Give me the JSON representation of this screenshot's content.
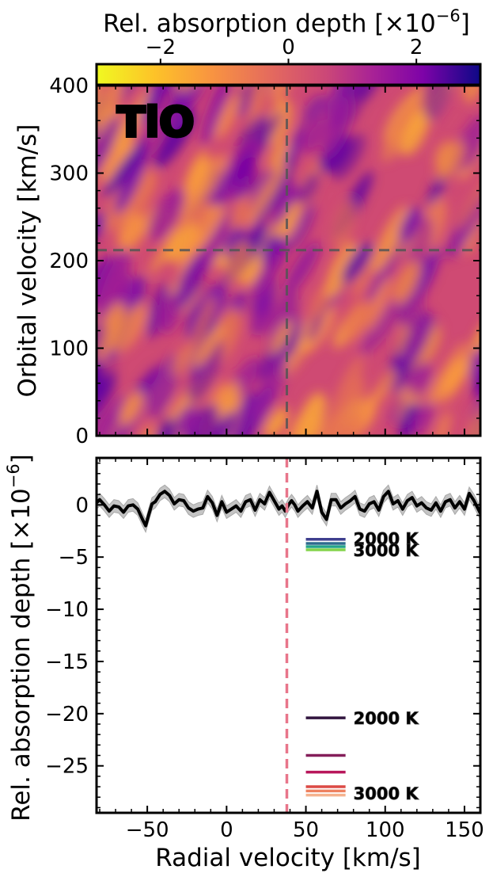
{
  "chart_data": [
    {
      "type": "heatmap",
      "panel_label": "TiO",
      "xlim": [
        -82,
        160
      ],
      "ylim": [
        0,
        400
      ],
      "x_ticks": [
        "−50",
        "0",
        "50",
        "100",
        "150"
      ],
      "x_tick_values": [
        -50,
        0,
        50,
        100,
        150
      ],
      "y_ticks": [
        "0",
        "100",
        "200",
        "300",
        "400"
      ],
      "y_tick_values": [
        0,
        100,
        200,
        300,
        400
      ],
      "ylabel": "Orbital velocity [km/s]",
      "colormap": "plasma_r",
      "colorbar": {
        "label": "Rel. absorption depth [×10",
        "label_exp": "−6",
        "label_end": "]",
        "range": [
          -3,
          3
        ],
        "ticks": [
          "−2",
          "0",
          "2"
        ],
        "tick_values": [
          -2,
          0,
          2
        ],
        "placement": "top"
      },
      "reference_lines": {
        "radial_velocity": 38,
        "orbital_velocity": 212,
        "style": "dashed",
        "color": "#555555"
      },
      "field_description_values": "noise map with diagonal streaks, values roughly between −3 and 3 ×10^−6"
    },
    {
      "type": "line",
      "xlim": [
        -82,
        160
      ],
      "ylim": [
        -29.5,
        4.5
      ],
      "x_ticks": [
        "−50",
        "0",
        "50",
        "100",
        "150"
      ],
      "x_tick_values": [
        -50,
        0,
        50,
        100,
        150
      ],
      "y_ticks": [
        "0",
        "−5",
        "−10",
        "−15",
        "−20",
        "−25"
      ],
      "y_tick_values": [
        0,
        -5,
        -10,
        -15,
        -20,
        -25
      ],
      "xlabel": "Radial velocity [km/s]",
      "ylabel": "Rel. absorption depth [×10",
      "ylabel_exp": "−6",
      "ylabel_end": "]",
      "reference_line": {
        "x": 38,
        "color": "#e8768b",
        "style": "dashed"
      },
      "series": [
        {
          "color": "#000000",
          "band_color": "#c4c4c4",
          "band_halfwidth": 0.6,
          "x": [
            -82,
            -80,
            -77,
            -74,
            -71,
            -68,
            -65,
            -62,
            -59,
            -56,
            -53,
            -51,
            -49,
            -47,
            -45,
            -42,
            -39,
            -36,
            -33,
            -30,
            -27,
            -24,
            -21,
            -18,
            -15,
            -12,
            -9,
            -6,
            -3,
            0,
            3,
            6,
            9,
            12,
            15,
            18,
            21,
            24,
            27,
            30,
            33,
            35,
            37,
            39,
            41,
            43,
            45,
            48,
            51,
            54,
            57,
            60,
            63,
            66,
            69,
            72,
            75,
            78,
            81,
            84,
            87,
            90,
            93,
            96,
            99,
            102,
            105,
            108,
            111,
            114,
            117,
            120,
            123,
            126,
            129,
            132,
            135,
            138,
            141,
            144,
            147,
            150,
            153,
            156,
            160
          ],
          "y": [
            0.2,
            0.5,
            0,
            -0.6,
            -0.1,
            -0.2,
            -0.7,
            -0.1,
            0,
            -0.4,
            -1.4,
            -2.0,
            -0.9,
            0.1,
            0.3,
            1.0,
            1.3,
            0.9,
            0.1,
            0.5,
            0.4,
            -0.3,
            -0.6,
            -0.4,
            -0.3,
            0.8,
            0.2,
            -1.0,
            0.3,
            -0.7,
            -0.4,
            -0.1,
            -0.6,
            0.3,
            0.5,
            -0.5,
            0.5,
            0.1,
            1.2,
            0.4,
            -0.4,
            -0.1,
            -0.6,
            0,
            0.4,
            0,
            -0.6,
            -0.1,
            0.3,
            -0.3,
            1.3,
            -0.7,
            -1.4,
            0.5,
            0.5,
            -0.3,
            0.1,
            0.4,
            0.8,
            -0.4,
            -0.6,
            0.1,
            0.3,
            -0.5,
            0.8,
            1.3,
            0.1,
            0.4,
            -0.4,
            0.4,
            0.7,
            -0.1,
            0.2,
            -0.3,
            -0.5,
            0.2,
            -0.6,
            0.3,
            0.5,
            -0.3,
            0.3,
            -0.4,
            1.1,
            0.4,
            -0.8
          ]
        }
      ],
      "model_lines": [
        {
          "y": -3.3,
          "color": "#3f3f8e",
          "x_range": [
            50,
            75
          ]
        },
        {
          "y": -3.7,
          "color": "#2d6b8e",
          "x_range": [
            50,
            75
          ]
        },
        {
          "y": -4.0,
          "color": "#24a489",
          "x_range": [
            50,
            75
          ]
        },
        {
          "y": -4.3,
          "color": "#84d44b",
          "x_range": [
            50,
            75
          ]
        },
        {
          "y": -20.4,
          "color": "#31153f",
          "x_range": [
            50,
            75
          ]
        },
        {
          "y": -24.0,
          "color": "#841e5a",
          "x_range": [
            50,
            75
          ]
        },
        {
          "y": -25.6,
          "color": "#b8175b",
          "x_range": [
            50,
            75
          ]
        },
        {
          "y": -27.0,
          "color": "#dc4a45",
          "x_range": [
            50,
            75
          ]
        },
        {
          "y": -27.4,
          "color": "#ee8160",
          "x_range": [
            50,
            75
          ]
        },
        {
          "y": -27.8,
          "color": "#f5b28e",
          "x_range": [
            50,
            75
          ]
        }
      ],
      "annotations": [
        {
          "text": "2000 K",
          "y": -3.2,
          "color": "#443a83"
        },
        {
          "text": "3000 K",
          "y": -4.3,
          "color": "#8ed14b"
        },
        {
          "text": "2000 K",
          "y": -20.4,
          "color": "#31153f"
        },
        {
          "text": "3000 K",
          "y": -27.6,
          "color": "#f3a583"
        }
      ]
    }
  ]
}
